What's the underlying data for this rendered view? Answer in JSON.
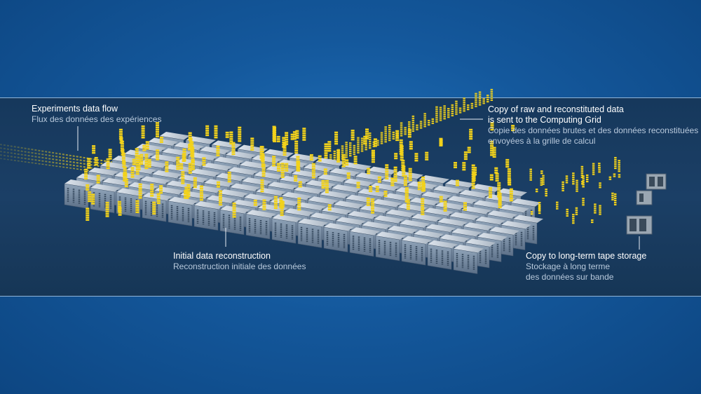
{
  "labels": {
    "experiments": {
      "en": "Experiments data flow",
      "fr": "Flux des données des expériences"
    },
    "copy_grid": {
      "en": "Copy of raw and reconstituted data\nis sent to the Computing Grid",
      "fr": "Copie des données brutes et des données reconstituées\nenvoyées à la grille de calcul"
    },
    "reconstruction": {
      "en": "Initial data reconstruction",
      "fr": "Reconstruction initiale des données"
    },
    "tape": {
      "en": "Copy to long-term tape storage",
      "fr": "Stockage à long terme\ndes données sur bande"
    }
  },
  "colors": {
    "background": "#14589c",
    "band": "#1b3f66",
    "data_bits": "#f2d21b",
    "servers": "#c9d2dc",
    "text_fr": "#b8c9dc"
  }
}
